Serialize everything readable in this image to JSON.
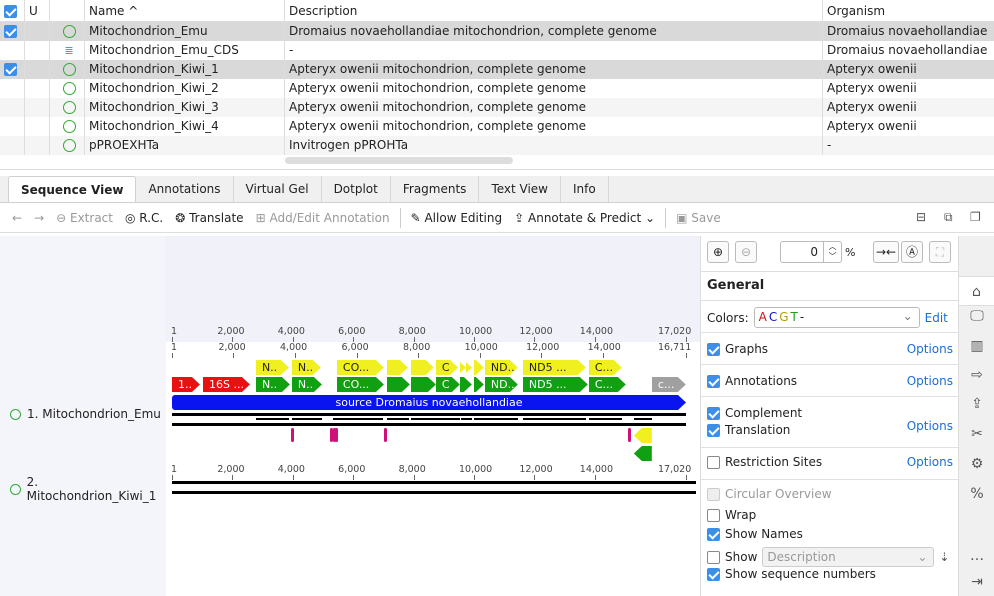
{
  "table": {
    "headers": {
      "u": "U",
      "name": "Name ^",
      "description": "Description",
      "organism": "Organism"
    },
    "rows": [
      {
        "checked": true,
        "icon": "sequence-circle-icon",
        "name": "Mitochondrion_Emu",
        "description": "Dromaius novaehollandiae mitochondrion, complete genome",
        "organism": "Dromaius novaehollandiae",
        "selected": true
      },
      {
        "checked": false,
        "icon": "cds-list-icon",
        "name": "Mitochondrion_Emu_CDS",
        "description": "-",
        "organism": "Dromaius novaehollandiae",
        "selected": false
      },
      {
        "checked": true,
        "icon": "sequence-circle-icon",
        "name": "Mitochondrion_Kiwi_1",
        "description": "Apteryx owenii mitochondrion, complete genome",
        "organism": "Apteryx owenii",
        "selected": true
      },
      {
        "checked": false,
        "icon": "sequence-circle-icon",
        "name": "Mitochondrion_Kiwi_2",
        "description": "Apteryx owenii mitochondrion, complete genome",
        "organism": "Apteryx owenii",
        "selected": false
      },
      {
        "checked": false,
        "icon": "sequence-circle-icon",
        "name": "Mitochondrion_Kiwi_3",
        "description": "Apteryx owenii mitochondrion, complete genome",
        "organism": "Apteryx owenii",
        "selected": false
      },
      {
        "checked": false,
        "icon": "sequence-circle-icon",
        "name": "Mitochondrion_Kiwi_4",
        "description": "Apteryx owenii mitochondrion, complete genome",
        "organism": "Apteryx owenii",
        "selected": false
      },
      {
        "checked": false,
        "icon": "sequence-circle-icon",
        "name": "pPROEXHTa",
        "description": "Invitrogen pPROHTa",
        "organism": "-",
        "selected": false
      }
    ]
  },
  "tabs": [
    "Sequence View",
    "Annotations",
    "Virtual Gel",
    "Dotplot",
    "Fragments",
    "Text View",
    "Info"
  ],
  "toolbar": {
    "back": "←",
    "forward": "→",
    "extract": "Extract",
    "rc": "R.C.",
    "translate": "Translate",
    "add_edit": "Add/Edit Annotation",
    "allow_editing": "Allow Editing",
    "annotate": "Annotate & Predict ⌄",
    "save": "Save"
  },
  "sequences": [
    {
      "label": "1. Mitochondrion_Emu",
      "length": 16711
    },
    {
      "label": "2. Mitochondrion_Kiwi_1",
      "length": 17020
    }
  ],
  "ruler_ticks": [
    "1",
    "2,000",
    "4,000",
    "6,000",
    "8,000",
    "10,000",
    "12,000",
    "14,000"
  ],
  "ruler_max": "17,020",
  "emu_max": "16,711",
  "features": [
    {
      "row": "cds",
      "name": "1..",
      "start": 1,
      "end": 910,
      "color": "#e81010"
    },
    {
      "row": "cds",
      "name": "16S ...",
      "start": 1008,
      "end": 2535,
      "color": "#e81010"
    },
    {
      "row": "cds",
      "name": "N..",
      "start": 2730,
      "end": 3835,
      "color": "#11a011"
    },
    {
      "row": "cds",
      "name": "N..",
      "start": 3900,
      "end": 4875,
      "color": "#11a011"
    },
    {
      "row": "cds",
      "name": "CO...",
      "start": 5363,
      "end": 6890,
      "color": "#11a011"
    },
    {
      "row": "cds",
      "name": "",
      "start": 6988,
      "end": 7735,
      "color": "#11a011"
    },
    {
      "row": "cds",
      "name": "",
      "start": 7768,
      "end": 8580,
      "color": "#11a011"
    },
    {
      "row": "cds",
      "name": "C",
      "start": 8580,
      "end": 9360,
      "color": "#11a011"
    },
    {
      "row": "cds",
      "name": "",
      "start": 9360,
      "end": 9750,
      "color": "#11a011"
    },
    {
      "row": "cds",
      "name": "",
      "start": 9815,
      "end": 10140,
      "color": "#11a011"
    },
    {
      "row": "cds",
      "name": "ND...",
      "start": 10173,
      "end": 11245,
      "color": "#11a011"
    },
    {
      "row": "cds",
      "name": "ND5 ...",
      "start": 11408,
      "end": 13520,
      "color": "#11a011"
    },
    {
      "row": "cds",
      "name": "C...",
      "start": 13553,
      "end": 14755,
      "color": "#11a011"
    },
    {
      "row": "cds",
      "name": "c...",
      "start": 15600,
      "end": 16705,
      "color": "#a0a0a0"
    },
    {
      "row": "gene",
      "name": "N..",
      "start": 2730,
      "end": 3800,
      "color": "#f0f020"
    },
    {
      "row": "gene",
      "name": "N..",
      "start": 3900,
      "end": 4840,
      "color": "#f0f020"
    },
    {
      "row": "gene",
      "name": "CO...",
      "start": 5363,
      "end": 6890,
      "color": "#f0f020"
    },
    {
      "row": "gene",
      "name": "",
      "start": 6988,
      "end": 7670,
      "color": "#f0f020"
    },
    {
      "row": "gene",
      "name": "",
      "start": 7768,
      "end": 8510,
      "color": "#f0f020"
    },
    {
      "row": "gene",
      "name": "C",
      "start": 8580,
      "end": 9300,
      "color": "#f0f020"
    },
    {
      "row": "gene",
      "name": "",
      "start": 9360,
      "end": 9555,
      "color": "#f0f020"
    },
    {
      "row": "gene",
      "name": "",
      "start": 9555,
      "end": 9750,
      "color": "#f0f020"
    },
    {
      "row": "gene",
      "name": "",
      "start": 9815,
      "end": 10140,
      "color": "#f0f020"
    },
    {
      "row": "gene",
      "name": "ND...",
      "start": 10173,
      "end": 11245,
      "color": "#f0f020"
    },
    {
      "row": "gene",
      "name": "ND5 ...",
      "start": 11408,
      "end": 13455,
      "color": "#f0f020"
    },
    {
      "row": "gene",
      "name": "C...",
      "start": 13553,
      "end": 14625,
      "color": "#f0f020"
    },
    {
      "row": "rev-gene",
      "name": "",
      "start": 15015,
      "end": 15600,
      "color": "#f0f020"
    },
    {
      "row": "rev-cds",
      "name": "",
      "start": 15015,
      "end": 15600,
      "color": "#11a011"
    }
  ],
  "trna": [
    3880,
    5150,
    5220,
    5290,
    6890,
    14840
  ],
  "source": {
    "name": "source Dromaius novaehollandiae",
    "color": "#0a14f0"
  },
  "zoom": {
    "value": "0",
    "unit": "%"
  },
  "panel": {
    "title": "General",
    "colors_label": "Colors:",
    "colors_letters": [
      {
        "t": "A",
        "c": "#d01010"
      },
      {
        "t": "C",
        "c": "#1010d0"
      },
      {
        "t": "G",
        "c": "#b0a000"
      },
      {
        "t": "T",
        "c": "#20a020"
      },
      {
        "t": "-",
        "c": "#222"
      }
    ],
    "edit": "Edit",
    "options": [
      {
        "label": "Graphs",
        "checked": true,
        "link": "Options"
      },
      {
        "label": "Annotations",
        "checked": true,
        "link": "Options"
      },
      {
        "label": "Complement",
        "checked": true
      },
      {
        "label": "Translation",
        "checked": true,
        "link": "Options"
      },
      {
        "label": "Restriction Sites",
        "checked": false,
        "link": "Options"
      },
      {
        "label": "Circular Overview",
        "checked": false,
        "disabled": true
      },
      {
        "label": "Wrap",
        "checked": false
      },
      {
        "label": "Show Names",
        "checked": true
      },
      {
        "label": "Show",
        "checked": false,
        "select": "Description"
      },
      {
        "label": "Show sequence numbers",
        "checked": true
      }
    ]
  }
}
